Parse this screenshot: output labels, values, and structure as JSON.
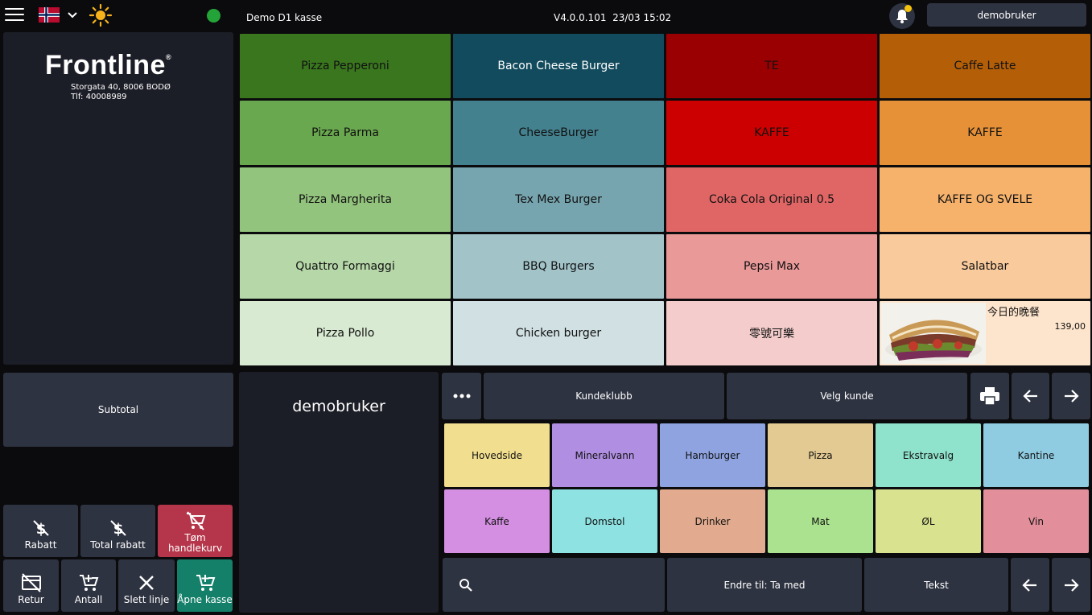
{
  "topbar": {
    "shop_name": "Demo D1 kasse",
    "version": "V4.0.0.101",
    "datetime": "23/03 15:02",
    "user": "demobruker",
    "status_color": "#23a338",
    "notification_badge_color": "#f4c20d"
  },
  "receipt": {
    "logo_text": "Frontline",
    "logo_mark": "®",
    "address": "Storgata 40, 8006 BODØ",
    "phone": "Tlf: 40008989"
  },
  "subtotal_label": "Subtotal",
  "actions": {
    "rabatt": "Rabatt",
    "total_rabatt": "Total rabatt",
    "tom_handlekurv_1": "Tøm",
    "tom_handlekurv_2": "handlekurv",
    "retur": "Retur",
    "antall": "Antall",
    "slett_linje": "Slett linje",
    "apne_kasse": "Åpne kasse"
  },
  "products": [
    {
      "label": "Pizza Pepperoni",
      "color": "#39761e"
    },
    {
      "label": "Bacon Cheese Burger",
      "color": "#124b5d"
    },
    {
      "label": "TE",
      "color": "#9a0001"
    },
    {
      "label": "Caffe Latte",
      "color": "#b45f08"
    },
    {
      "label": "Pizza Parma",
      "color": "#6aa84f"
    },
    {
      "label": "CheeseBurger",
      "color": "#44818f"
    },
    {
      "label": "KAFFE",
      "color": "#cc0000"
    },
    {
      "label": "KAFFE",
      "color": "#e69138"
    },
    {
      "label": "Pizza Margherita",
      "color": "#93c47d"
    },
    {
      "label": "Tex Mex Burger",
      "color": "#76a5af"
    },
    {
      "label": "Coka Cola Original 0.5",
      "color": "#e06666"
    },
    {
      "label": "KAFFE OG SVELE",
      "color": "#f6b26b"
    },
    {
      "label": "Quattro Formaggi",
      "color": "#b6d7a8"
    },
    {
      "label": "BBQ Burgers",
      "color": "#a2c4c9"
    },
    {
      "label": "Pepsi Max",
      "color": "#ea9999"
    },
    {
      "label": "Salatbar",
      "color": "#f9cb9c"
    },
    {
      "label": "Pizza Pollo",
      "color": "#d9ead3"
    },
    {
      "label": "Chicken burger",
      "color": "#d0e0e3"
    },
    {
      "label": "零號可樂",
      "color": "#f4cccc"
    },
    {
      "label": "今日的晚餐",
      "color": "#fde4cc",
      "price": "139,00",
      "image": "kebab-dish"
    }
  ],
  "userpanel_name": "demobruker",
  "toolbar": {
    "kundeklubb": "Kundeklubb",
    "velg_kunde": "Velg kunde"
  },
  "categories": [
    {
      "label": "Hovedside",
      "color": "#f2de8f"
    },
    {
      "label": "Mineralvann",
      "color": "#b08fe2"
    },
    {
      "label": "Hamburger",
      "color": "#8ea3e0"
    },
    {
      "label": "Pizza",
      "color": "#e2ca92"
    },
    {
      "label": "Ekstravalg",
      "color": "#8fe2cb"
    },
    {
      "label": "Kantine",
      "color": "#8fcce2"
    },
    {
      "label": "Kaffe",
      "color": "#d48fe2"
    },
    {
      "label": "Domstol",
      "color": "#8fe2e2"
    },
    {
      "label": "Drinker",
      "color": "#e2ab8f"
    },
    {
      "label": "Mat",
      "color": "#abe28f"
    },
    {
      "label": "ØL",
      "color": "#d8e28f"
    },
    {
      "label": "Vin",
      "color": "#e28f9b"
    }
  ],
  "bottombar": {
    "endre": "Endre til: Ta med",
    "tekst": "Tekst"
  },
  "icons": {
    "menu": "hamburger-menu-icon",
    "flag": "norway-flag-icon",
    "theme": "sun-icon",
    "notifications": "bell-icon",
    "more": "ellipsis-icon",
    "print": "printer-icon",
    "back": "arrow-left-icon",
    "forward": "arrow-right-icon",
    "search": "search-icon"
  }
}
